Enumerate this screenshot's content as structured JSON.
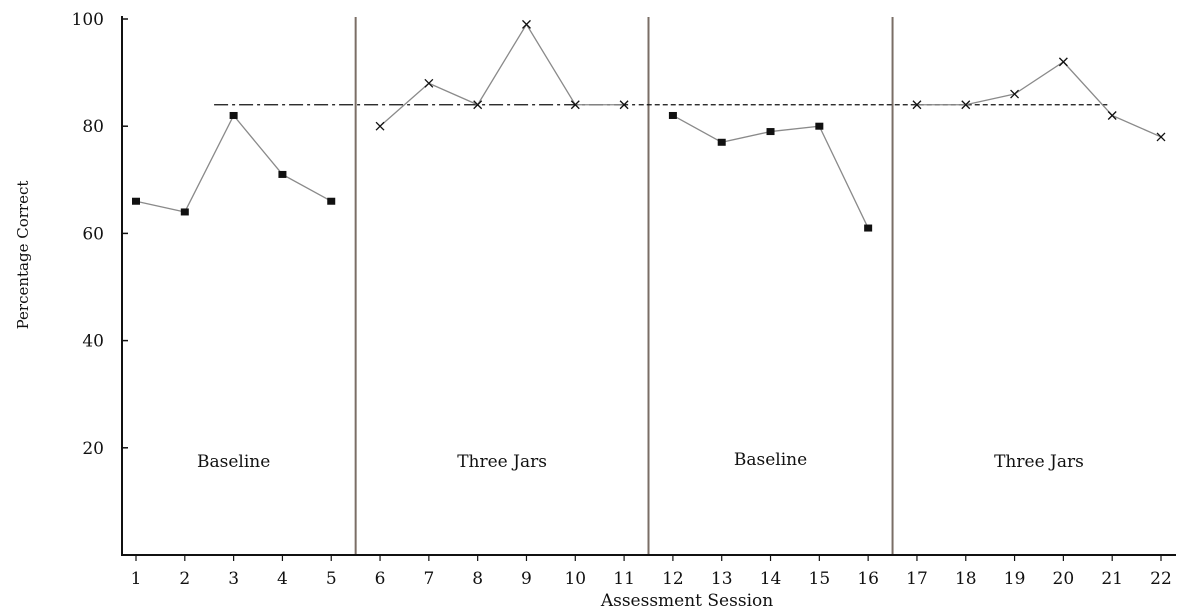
{
  "chart_data": {
    "type": "line",
    "xlabel": "Assessment Session",
    "ylabel": "Percentage Correct",
    "ylim": [
      0,
      100
    ],
    "yticks": [
      20,
      40,
      60,
      80,
      100
    ],
    "xticks": [
      1,
      2,
      3,
      4,
      5,
      6,
      7,
      8,
      9,
      10,
      11,
      12,
      13,
      14,
      15,
      16,
      17,
      18,
      19,
      20,
      21,
      22
    ],
    "phases": [
      {
        "label": "Baseline",
        "sessions": [
          1,
          5
        ]
      },
      {
        "label": "Three Jars",
        "sessions": [
          6,
          11
        ]
      },
      {
        "label": "Baseline",
        "sessions": [
          12,
          16
        ]
      },
      {
        "label": "Three Jars",
        "sessions": [
          17,
          22
        ]
      }
    ],
    "series": [
      {
        "marker": "square",
        "x": [
          1,
          2,
          3,
          4,
          5
        ],
        "values": [
          66,
          64,
          82,
          71,
          66
        ]
      },
      {
        "marker": "x",
        "x": [
          6,
          7,
          8,
          9,
          10,
          11
        ],
        "values": [
          80,
          88,
          84,
          99,
          84,
          84
        ]
      },
      {
        "marker": "square",
        "x": [
          12,
          13,
          14,
          15,
          16
        ],
        "values": [
          82,
          77,
          79,
          80,
          61
        ]
      },
      {
        "marker": "x",
        "x": [
          17,
          18,
          19,
          20,
          21,
          22
        ],
        "values": [
          84,
          84,
          86,
          92,
          82,
          78
        ]
      }
    ],
    "reference_lines": [
      {
        "style": "dash-dot",
        "y": 84,
        "x_start": 2.6,
        "x_end": 11.3
      },
      {
        "style": "dashed",
        "y": 84,
        "x_start": 11.3,
        "x_end": 20.9
      }
    ],
    "colors": {
      "line": "#8a8a8a",
      "marker": "#111111",
      "axis": "#111111",
      "phase_divider": "#7a6e66",
      "reference": "#111111"
    },
    "grid": false
  }
}
